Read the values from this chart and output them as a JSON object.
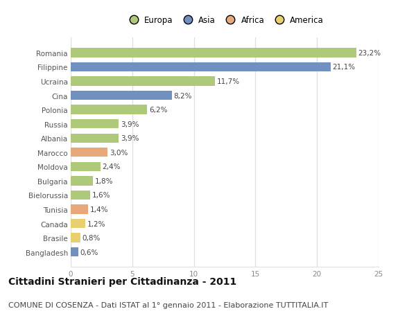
{
  "categories": [
    "Romania",
    "Filippine",
    "Ucraina",
    "Cina",
    "Polonia",
    "Russia",
    "Albania",
    "Marocco",
    "Moldova",
    "Bulgaria",
    "Bielorussia",
    "Tunisia",
    "Canada",
    "Brasile",
    "Bangladesh"
  ],
  "values": [
    23.2,
    21.1,
    11.7,
    8.2,
    6.2,
    3.9,
    3.9,
    3.0,
    2.4,
    1.8,
    1.6,
    1.4,
    1.2,
    0.8,
    0.6
  ],
  "labels": [
    "23,2%",
    "21,1%",
    "11,7%",
    "8,2%",
    "6,2%",
    "3,9%",
    "3,9%",
    "3,0%",
    "2,4%",
    "1,8%",
    "1,6%",
    "1,4%",
    "1,2%",
    "0,8%",
    "0,6%"
  ],
  "colors": [
    "#aec97a",
    "#7090c0",
    "#aec97a",
    "#7090c0",
    "#aec97a",
    "#aec97a",
    "#aec97a",
    "#e8a87a",
    "#aec97a",
    "#aec97a",
    "#aec97a",
    "#e8a87a",
    "#e8d070",
    "#e8d070",
    "#7090c0"
  ],
  "legend_labels": [
    "Europa",
    "Asia",
    "Africa",
    "America"
  ],
  "legend_colors": [
    "#aec97a",
    "#7090c0",
    "#e8a87a",
    "#e8d070"
  ],
  "xlim": [
    0,
    25
  ],
  "xticks": [
    0,
    5,
    10,
    15,
    20,
    25
  ],
  "title": "Cittadini Stranieri per Cittadinanza - 2011",
  "subtitle": "COMUNE DI COSENZA - Dati ISTAT al 1° gennaio 2011 - Elaborazione TUTTITALIA.IT",
  "bg_color": "#ffffff",
  "grid_color": "#e0e0e0",
  "bar_height": 0.65,
  "title_fontsize": 10,
  "subtitle_fontsize": 8,
  "label_fontsize": 7.5,
  "tick_fontsize": 7.5
}
